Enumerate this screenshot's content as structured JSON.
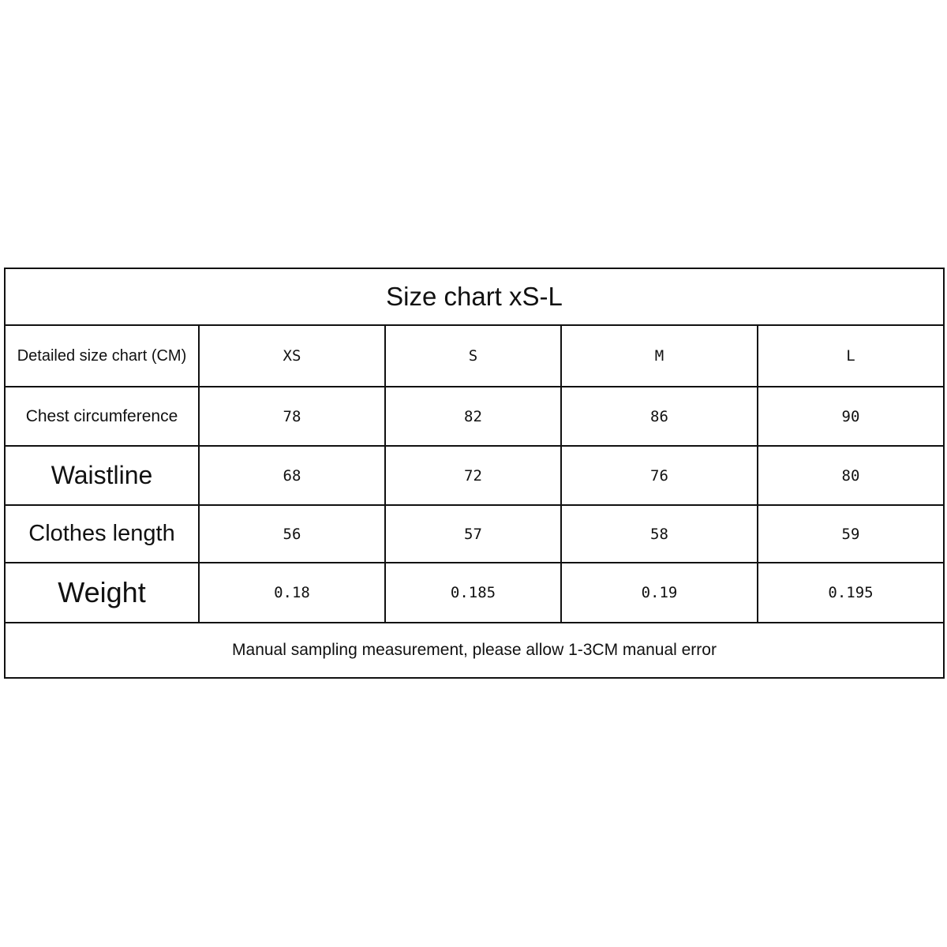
{
  "title": "Size chart xS-L",
  "header": {
    "label": "Detailed size chart (CM)",
    "sizes": [
      "XS",
      "S",
      "M",
      "L"
    ]
  },
  "rows": [
    {
      "label": "Chest circumference",
      "values": [
        "78",
        "82",
        "86",
        "90"
      ]
    },
    {
      "label": "Waistline",
      "values": [
        "68",
        "72",
        "76",
        "80"
      ]
    },
    {
      "label": "Clothes length",
      "values": [
        "56",
        "57",
        "58",
        "59"
      ]
    },
    {
      "label": "Weight",
      "values": [
        "0.18",
        "0.185",
        "0.19",
        "0.195"
      ]
    }
  ],
  "footer": "Manual sampling measurement, please allow 1-3CM manual error"
}
